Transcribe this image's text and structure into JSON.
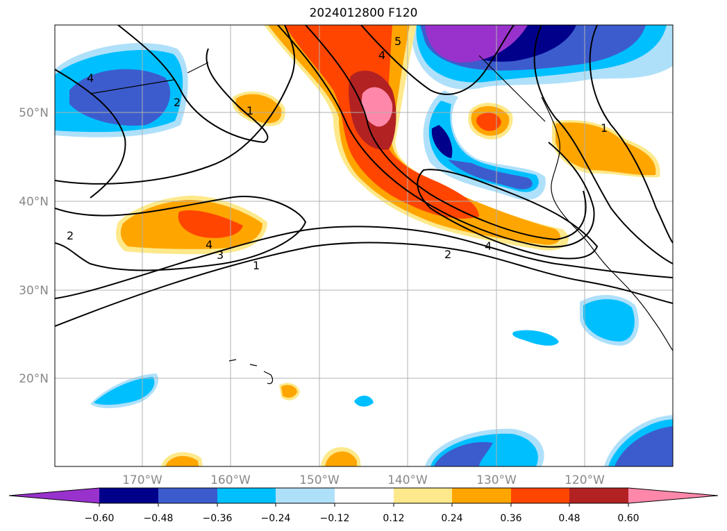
{
  "title": "2024012800 F120",
  "map": {
    "lat_labels": [
      "50°N",
      "40°N",
      "30°N",
      "20°N"
    ],
    "lon_labels": [
      "170°W",
      "160°W",
      "150°W",
      "140°W",
      "130°W",
      "120°W"
    ],
    "contour_labels": [
      "4",
      "2",
      "1",
      "5",
      "4",
      "1",
      "4",
      "3",
      "1",
      "2",
      "4",
      "2"
    ]
  },
  "colorbar": {
    "colors": [
      "#9932cc",
      "#00008b",
      "#3c5ccd",
      "#00bfff",
      "#afe0fa",
      "#ffffff",
      "#fde98b",
      "#ffa500",
      "#ff4500",
      "#b22222",
      "#ff88aa"
    ],
    "tick_labels": [
      "−0.60",
      "−0.48",
      "−0.36",
      "−0.24",
      "−0.12",
      "0.12",
      "0.24",
      "0.36",
      "0.48",
      "0.60"
    ]
  }
}
